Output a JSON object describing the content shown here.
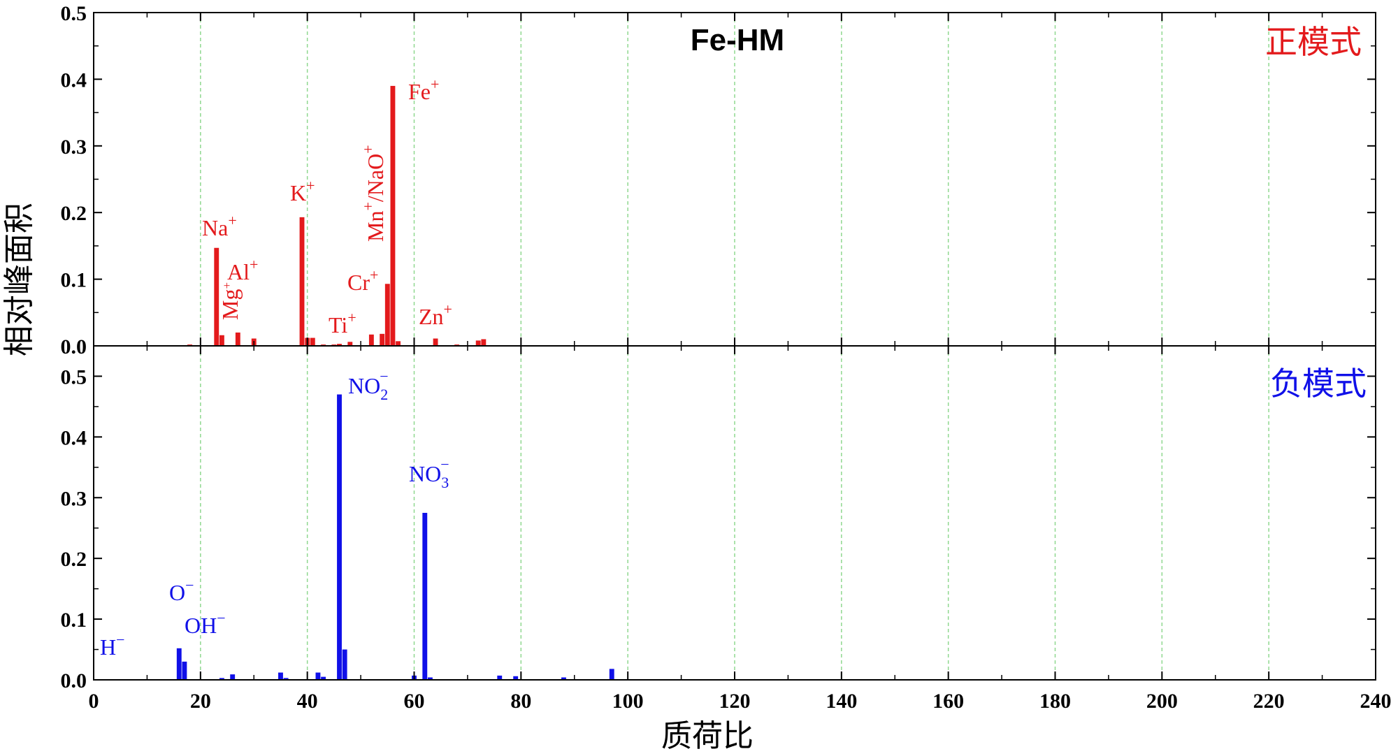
{
  "chart_data": {
    "type": "bar",
    "title": "Fe-HM",
    "xlabel": "质荷比",
    "ylabel": "相对峰面积",
    "xlim": [
      0,
      240
    ],
    "xticks": [
      0,
      20,
      40,
      60,
      80,
      100,
      120,
      140,
      160,
      180,
      200,
      220,
      240
    ],
    "grid": "vertical dashed green at major x ticks",
    "panels": [
      {
        "name": "正模式",
        "color": "#e31a1c",
        "ylim": [
          0,
          0.5
        ],
        "yticks": [
          "0.0",
          "0.1",
          "0.2",
          "0.3",
          "0.4",
          "0.5"
        ],
        "x": [
          7,
          18,
          23,
          24,
          27,
          30,
          39,
          40,
          41,
          43,
          45,
          46,
          48,
          52,
          54,
          55,
          56,
          57,
          64,
          68,
          72,
          73
        ],
        "values": [
          0.001,
          0.002,
          0.147,
          0.016,
          0.02,
          0.011,
          0.193,
          0.012,
          0.012,
          0.002,
          0.002,
          0.003,
          0.006,
          0.017,
          0.018,
          0.093,
          0.39,
          0.007,
          0.011,
          0.002,
          0.008,
          0.01
        ],
        "annotations": [
          {
            "base": "Na",
            "sup": "+"
          },
          {
            "base": "Al",
            "sup": "+"
          },
          {
            "base": "Mg",
            "sup": "+"
          },
          {
            "base": "K",
            "sup": "+"
          },
          {
            "base": "Mn",
            "sup": "+",
            "rest": "/NaO",
            "sup2": "+"
          },
          {
            "base": "Cr",
            "sup": "+"
          },
          {
            "base": "Ti",
            "sup": "+"
          },
          {
            "base": "Fe",
            "sup": "+"
          },
          {
            "base": "Zn",
            "sup": "+"
          }
        ]
      },
      {
        "name": "负模式",
        "color": "#1010e8",
        "ylim": [
          0,
          0.55
        ],
        "yticks": [
          "0.0",
          "0.1",
          "0.2",
          "0.3",
          "0.4",
          "0.5"
        ],
        "x": [
          16,
          17,
          24,
          26,
          35,
          36,
          42,
          43,
          46,
          47,
          60,
          62,
          63,
          76,
          79,
          88,
          97
        ],
        "values": [
          0.052,
          0.03,
          0.003,
          0.009,
          0.012,
          0.003,
          0.012,
          0.005,
          0.47,
          0.05,
          0.007,
          0.275,
          0.004,
          0.007,
          0.006,
          0.004,
          0.018
        ],
        "annotations": [
          {
            "base": "H",
            "sup": "−"
          },
          {
            "base": "O",
            "sup": "−"
          },
          {
            "base": "OH",
            "sup": "−"
          },
          {
            "base": "NO",
            "sub": "2",
            "sup": "−"
          },
          {
            "base": "NO",
            "sub": "3",
            "sup": "−"
          }
        ]
      }
    ]
  }
}
